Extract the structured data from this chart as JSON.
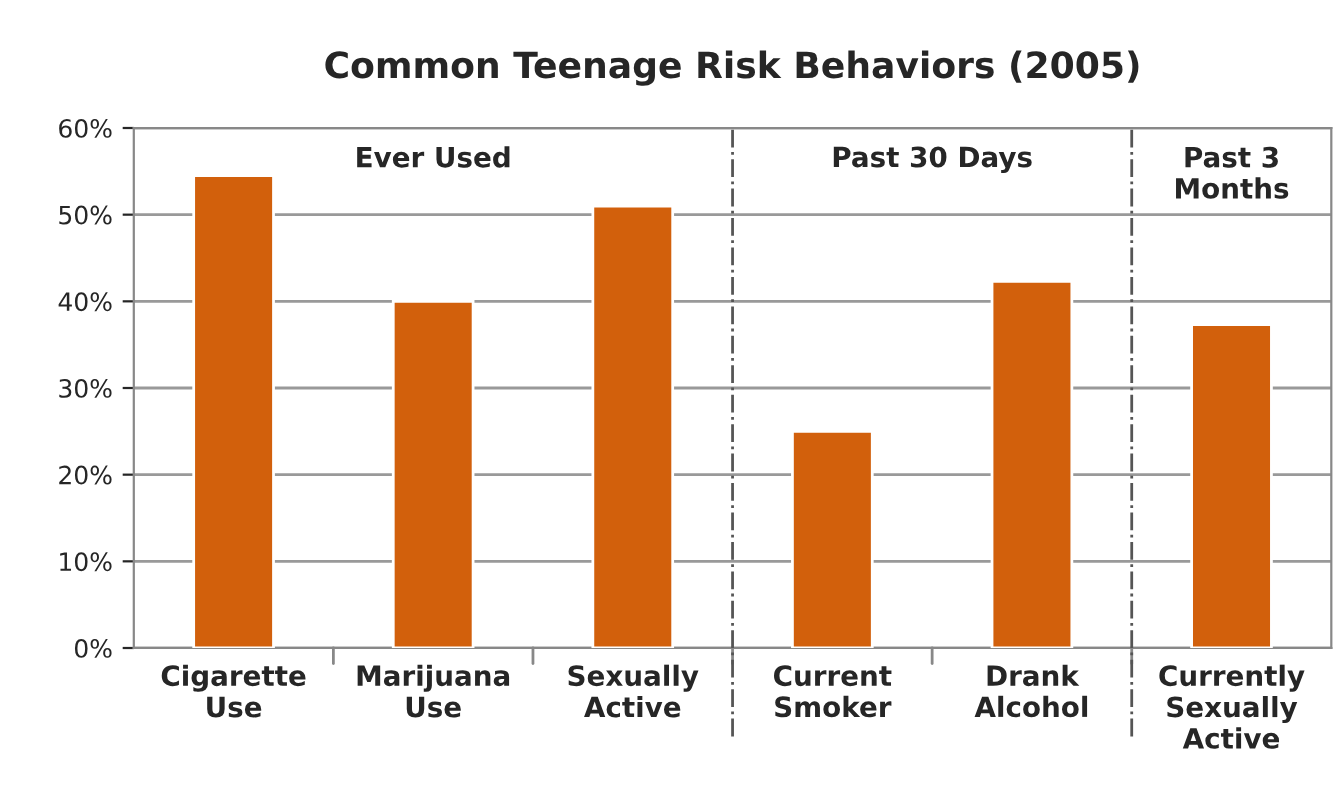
{
  "chart_data": {
    "type": "bar",
    "title": "Common Teenage Risk Behaviors (2005)",
    "categories": [
      "Cigarette\nUse",
      "Marijuana\nUse",
      "Sexually\nActive",
      "Current\nSmoker",
      "Drank\nAlcohol",
      "Currently\nSexually\nActive"
    ],
    "values": [
      54.5,
      40,
      51,
      25,
      42.3,
      37.3
    ],
    "color": "#d2600c",
    "ylim": [
      0,
      60
    ],
    "yticks": [
      {
        "value": 0,
        "label": "0%"
      },
      {
        "value": 10,
        "label": "10%"
      },
      {
        "value": 20,
        "label": "20%"
      },
      {
        "value": 30,
        "label": "30%"
      },
      {
        "value": 40,
        "label": "40%"
      },
      {
        "value": 50,
        "label": "50%"
      },
      {
        "value": 60,
        "label": "60%"
      }
    ],
    "grid": "y",
    "annotations": [
      "Ever Used",
      "Past 30 Days",
      "Past 3\nMonths"
    ]
  }
}
